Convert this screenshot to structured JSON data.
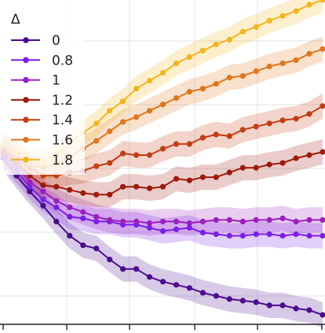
{
  "chart_data": {
    "type": "line",
    "legend_title": "Δ",
    "legend_placement": "top-left",
    "grid": true,
    "bands": true,
    "xlim": [
      0,
      24
    ],
    "ylim": [
      0,
      1
    ],
    "x": [
      0,
      1,
      2,
      3,
      4,
      5,
      6,
      7,
      8,
      9,
      10,
      11,
      12,
      13,
      14,
      15,
      16,
      17,
      18,
      19,
      20,
      21,
      22,
      23,
      24
    ],
    "series": [
      {
        "name": "0",
        "color": "#4b0c8f",
        "values": [
          0.5,
          0.445,
          0.395,
          0.35,
          0.3,
          0.255,
          0.225,
          0.215,
          0.18,
          0.15,
          0.15,
          0.125,
          0.11,
          0.1,
          0.09,
          0.075,
          0.065,
          0.055,
          0.05,
          0.045,
          0.035,
          0.035,
          0.025,
          0.02,
          0.005
        ]
      },
      {
        "name": "0.8",
        "color": "#7a1fe8",
        "values": [
          0.51,
          0.46,
          0.41,
          0.37,
          0.345,
          0.315,
          0.31,
          0.3,
          0.3,
          0.29,
          0.29,
          0.28,
          0.27,
          0.275,
          0.28,
          0.265,
          0.26,
          0.255,
          0.255,
          0.26,
          0.26,
          0.255,
          0.26,
          0.255,
          0.255
        ]
      },
      {
        "name": "1",
        "color": "#9b1fc0",
        "values": [
          0.515,
          0.475,
          0.425,
          0.395,
          0.365,
          0.345,
          0.33,
          0.315,
          0.305,
          0.3,
          0.3,
          0.295,
          0.3,
          0.3,
          0.295,
          0.3,
          0.305,
          0.305,
          0.3,
          0.305,
          0.305,
          0.31,
          0.3,
          0.305,
          0.305
        ]
      },
      {
        "name": "1.2",
        "color": "#9e1a0c",
        "values": [
          0.52,
          0.485,
          0.445,
          0.415,
          0.41,
          0.4,
          0.39,
          0.385,
          0.385,
          0.41,
          0.41,
          0.405,
          0.41,
          0.435,
          0.43,
          0.44,
          0.44,
          0.455,
          0.47,
          0.47,
          0.48,
          0.485,
          0.5,
          0.51,
          0.52
        ]
      },
      {
        "name": "1.4",
        "color": "#c43c12",
        "values": [
          0.53,
          0.495,
          0.47,
          0.445,
          0.445,
          0.455,
          0.46,
          0.475,
          0.485,
          0.515,
          0.51,
          0.51,
          0.53,
          0.545,
          0.545,
          0.565,
          0.575,
          0.57,
          0.59,
          0.6,
          0.61,
          0.62,
          0.625,
          0.64,
          0.665
        ]
      },
      {
        "name": "1.6",
        "color": "#e0761c",
        "values": [
          0.54,
          0.51,
          0.48,
          0.47,
          0.48,
          0.505,
          0.53,
          0.555,
          0.585,
          0.615,
          0.63,
          0.65,
          0.67,
          0.69,
          0.71,
          0.72,
          0.735,
          0.755,
          0.76,
          0.775,
          0.79,
          0.8,
          0.81,
          0.83,
          0.845
        ]
      },
      {
        "name": "1.8",
        "color": "#f2b51d",
        "values": [
          0.545,
          0.515,
          0.49,
          0.485,
          0.51,
          0.55,
          0.58,
          0.61,
          0.65,
          0.68,
          0.72,
          0.745,
          0.77,
          0.8,
          0.82,
          0.84,
          0.86,
          0.875,
          0.9,
          0.915,
          0.935,
          0.95,
          0.965,
          0.985,
          1.0
        ]
      }
    ]
  }
}
